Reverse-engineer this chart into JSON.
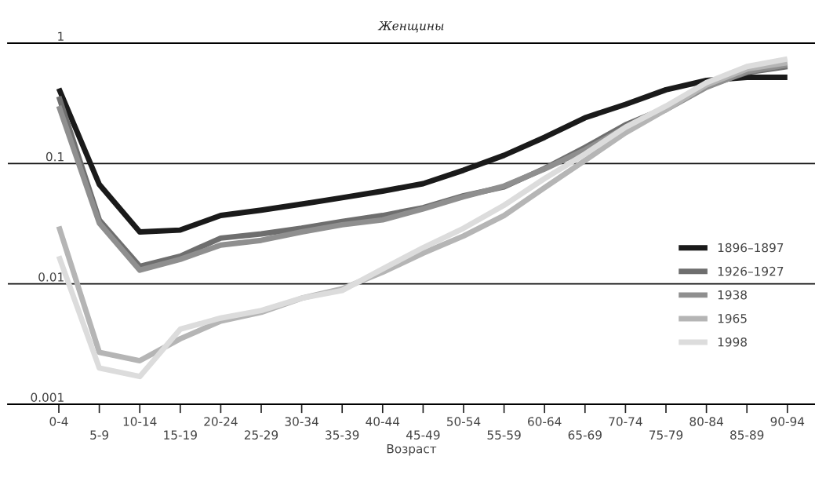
{
  "chart_data": {
    "type": "line",
    "title": "Женщины",
    "xlabel": "Возраст",
    "categories": [
      "0-4",
      "5-9",
      "10-14",
      "15-19",
      "20-24",
      "25-29",
      "30-34",
      "35-39",
      "40-44",
      "45-49",
      "50-54",
      "55-59",
      "60-64",
      "65-69",
      "70-74",
      "75-79",
      "80-84",
      "85-89",
      "90-94"
    ],
    "series": [
      {
        "name": "1896–1897",
        "color": "#1a1a1a",
        "values": [
          0.42,
          0.067,
          0.027,
          0.028,
          0.037,
          0.041,
          0.046,
          0.052,
          0.059,
          0.068,
          0.088,
          0.117,
          0.165,
          0.24,
          0.31,
          0.41,
          0.49,
          0.52,
          0.52
        ]
      },
      {
        "name": "1926–1927",
        "color": "#6e6e6e",
        "values": [
          0.36,
          0.034,
          0.014,
          0.017,
          0.024,
          0.026,
          0.029,
          0.033,
          0.037,
          0.043,
          0.054,
          0.064,
          0.091,
          0.136,
          0.21,
          0.29,
          0.44,
          0.57,
          0.64
        ]
      },
      {
        "name": "1938",
        "color": "#8f8f8f",
        "values": [
          0.3,
          0.032,
          0.013,
          0.016,
          0.021,
          0.023,
          0.027,
          0.031,
          0.034,
          0.042,
          0.053,
          0.065,
          0.09,
          0.13,
          0.2,
          0.28,
          0.43,
          0.58,
          0.66
        ]
      },
      {
        "name": "1965",
        "color": "#b5b5b5",
        "values": [
          0.03,
          0.0027,
          0.0023,
          0.0035,
          0.0049,
          0.0058,
          0.0076,
          0.0091,
          0.0125,
          0.018,
          0.025,
          0.037,
          0.063,
          0.106,
          0.18,
          0.28,
          0.45,
          0.61,
          0.69
        ]
      },
      {
        "name": "1998",
        "color": "#dcdcdc",
        "values": [
          0.017,
          0.002,
          0.0017,
          0.0042,
          0.0052,
          0.006,
          0.0076,
          0.0088,
          0.0133,
          0.02,
          0.029,
          0.045,
          0.075,
          0.12,
          0.2,
          0.3,
          0.47,
          0.64,
          0.74
        ]
      }
    ],
    "log": "y",
    "ylim": [
      0.001,
      1
    ],
    "yticks": [
      0.001,
      0.01,
      0.1,
      1
    ],
    "grid": "y",
    "legend": "right",
    "marker": "none",
    "line_style": "solid"
  }
}
